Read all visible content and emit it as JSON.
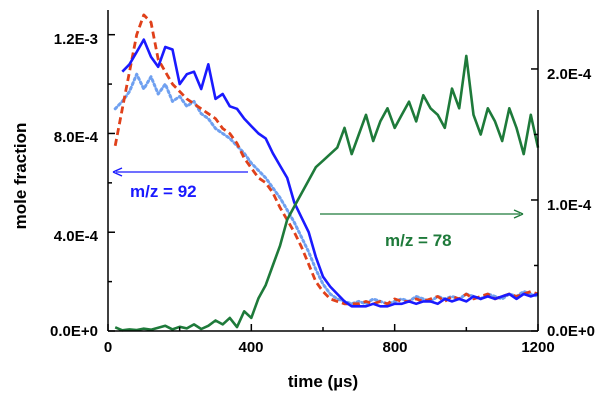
{
  "chart_data": {
    "type": "line",
    "xlabel": "time (µs)",
    "ylabel_left": "mole fraction",
    "ylabel_right": "",
    "xlim": [
      0,
      1200
    ],
    "ylim_left": [
      0,
      0.0013
    ],
    "ylim_right": [
      0,
      0.000245
    ],
    "x_ticks": [
      "0",
      "400",
      "800",
      "1200"
    ],
    "y_ticks_left": [
      "0.0E+0",
      "4.0E-4",
      "8.0E-4",
      "1.2E-3"
    ],
    "y_ticks_right": [
      "0.0E+0",
      "1.0E-4",
      "2.0E-4"
    ],
    "grid": false,
    "annotations": [
      {
        "text": "m/z = 92",
        "color": "#1a1aff",
        "arrow": "left",
        "axis": "left"
      },
      {
        "text": "m/z = 78",
        "color": "#1e7a3a",
        "arrow": "right",
        "axis": "right"
      }
    ],
    "series": [
      {
        "color": "#1a1aff",
        "style": "solid",
        "axis": "left",
        "x": [
          40,
          60,
          80,
          100,
          120,
          140,
          160,
          180,
          200,
          220,
          240,
          260,
          280,
          300,
          320,
          340,
          360,
          380,
          400,
          420,
          440,
          460,
          480,
          500,
          520,
          540,
          560,
          580,
          600,
          620,
          640,
          660,
          680,
          700,
          720,
          740,
          760,
          780,
          800,
          820,
          840,
          860,
          880,
          900,
          920,
          940,
          960,
          980,
          1000,
          1020,
          1040,
          1060,
          1080,
          1100,
          1120,
          1140,
          1160,
          1180,
          1200
        ],
        "y": [
          0.00105,
          0.00108,
          0.00113,
          0.00118,
          0.00111,
          0.00107,
          0.00115,
          0.00114,
          0.001,
          0.00104,
          0.00105,
          0.00098,
          0.00108,
          0.00094,
          0.00096,
          0.00091,
          0.0009,
          0.00086,
          0.00083,
          0.0008,
          0.00078,
          0.00072,
          0.00067,
          0.00062,
          0.00052,
          0.00046,
          0.0004,
          0.0003,
          0.00022,
          0.00018,
          0.00015,
          0.00012,
          0.0001,
          0.0001,
          0.0001,
          0.00011,
          0.0001,
          0.0001,
          0.00011,
          0.00011,
          0.00012,
          0.00011,
          0.00012,
          0.00012,
          0.00011,
          0.00013,
          0.00012,
          0.00013,
          0.00012,
          0.00014,
          0.00013,
          0.00014,
          0.00013,
          0.00014,
          0.00015,
          0.00013,
          0.00015,
          0.00014,
          0.00015
        ]
      },
      {
        "color": "#e0401a",
        "style": "dashed",
        "axis": "left",
        "x": [
          20,
          40,
          60,
          80,
          100,
          120,
          140,
          160,
          180,
          200,
          220,
          240,
          260,
          280,
          300,
          320,
          340,
          360,
          380,
          400,
          420,
          440,
          460,
          480,
          500,
          520,
          540,
          560,
          580,
          600,
          620,
          640,
          660,
          680,
          700,
          720,
          740,
          760,
          780,
          800,
          820,
          840,
          860,
          880,
          900,
          920,
          940,
          960,
          980,
          1000,
          1020,
          1040,
          1060,
          1080,
          1100,
          1120,
          1140,
          1160,
          1180,
          1200
        ],
        "y": [
          0.00075,
          0.0009,
          0.00105,
          0.0012,
          0.00128,
          0.00125,
          0.0011,
          0.00105,
          0.001,
          0.00097,
          0.00094,
          0.00092,
          0.0009,
          0.00088,
          0.00086,
          0.00082,
          0.0008,
          0.00076,
          0.0007,
          0.00066,
          0.00062,
          0.0006,
          0.00056,
          0.0005,
          0.00045,
          0.0004,
          0.00034,
          0.00027,
          0.0002,
          0.00016,
          0.00013,
          0.00012,
          0.00011,
          0.00011,
          0.00011,
          0.00012,
          0.00011,
          0.00012,
          0.00011,
          0.00013,
          0.00012,
          0.00012,
          0.00013,
          0.00012,
          0.00013,
          0.00014,
          0.00012,
          0.00014,
          0.00013,
          0.00015,
          0.00013,
          0.00014,
          0.00015,
          0.00013,
          0.00014,
          0.00015,
          0.00014,
          0.00015,
          0.00016,
          0.00015
        ]
      },
      {
        "color": "#6fa0f0",
        "style": "dotted",
        "axis": "left",
        "x": [
          20,
          40,
          60,
          80,
          100,
          120,
          140,
          160,
          180,
          200,
          220,
          240,
          260,
          280,
          300,
          320,
          340,
          360,
          380,
          400,
          420,
          440,
          460,
          480,
          500,
          520,
          540,
          560,
          580,
          600,
          620,
          640,
          660,
          680,
          700,
          720,
          740,
          760,
          780,
          800,
          820,
          840,
          860,
          880,
          900,
          920,
          940,
          960,
          980,
          1000,
          1020,
          1040,
          1060,
          1080,
          1100,
          1120,
          1140,
          1160,
          1180,
          1200
        ],
        "y": [
          0.0009,
          0.00093,
          0.00097,
          0.00104,
          0.00098,
          0.00103,
          0.00096,
          0.001,
          0.00093,
          0.00095,
          0.00091,
          0.00093,
          0.00088,
          0.00086,
          0.00082,
          0.0008,
          0.00078,
          0.00075,
          0.00072,
          0.00068,
          0.00065,
          0.00062,
          0.00058,
          0.00054,
          0.00049,
          0.00044,
          0.00038,
          0.00032,
          0.00025,
          0.00019,
          0.00015,
          0.00013,
          0.00012,
          0.00011,
          0.00012,
          0.00011,
          0.00013,
          0.00012,
          0.00011,
          0.00012,
          0.00013,
          0.00012,
          0.00014,
          0.00013,
          0.00012,
          0.00014,
          0.00013,
          0.00014,
          0.00013,
          0.00015,
          0.00014,
          0.00013,
          0.00015,
          0.00014,
          0.00013,
          0.00015,
          0.00014,
          0.00016,
          0.00015,
          0.00014
        ]
      },
      {
        "color": "#1e7a3a",
        "style": "solid",
        "axis": "right",
        "x": [
          20,
          40,
          60,
          80,
          100,
          120,
          140,
          160,
          180,
          200,
          220,
          240,
          260,
          280,
          300,
          320,
          340,
          360,
          380,
          400,
          420,
          440,
          460,
          480,
          500,
          520,
          540,
          560,
          580,
          600,
          620,
          640,
          660,
          680,
          700,
          720,
          740,
          760,
          780,
          800,
          820,
          840,
          860,
          880,
          900,
          920,
          940,
          960,
          980,
          1000,
          1020,
          1040,
          1060,
          1080,
          1100,
          1120,
          1140,
          1160,
          1180,
          1200
        ],
        "y": [
          2.8e-06,
          5e-07,
          1.2e-06,
          8e-07,
          1.8e-06,
          1e-06,
          2.5e-06,
          4e-06,
          1.2e-06,
          3.2e-06,
          2e-06,
          5e-06,
          1.5e-06,
          4e-06,
          8e-06,
          5e-06,
          1e-05,
          3e-06,
          1.5e-05,
          1e-05,
          2.5e-05,
          3.5e-05,
          5e-05,
          6.5e-05,
          8.5e-05,
          9.5e-05,
          0.000105,
          0.000115,
          0.000125,
          0.00013,
          0.000135,
          0.00014,
          0.000155,
          0.000135,
          0.00015,
          0.000165,
          0.000145,
          0.00016,
          0.00017,
          0.000155,
          0.000165,
          0.000175,
          0.00016,
          0.00018,
          0.00017,
          0.000165,
          0.000155,
          0.000185,
          0.00017,
          0.00021,
          0.000165,
          0.00015,
          0.00017,
          0.00016,
          0.000145,
          0.00017,
          0.000155,
          0.000135,
          0.000165,
          0.00014
        ]
      }
    ]
  }
}
